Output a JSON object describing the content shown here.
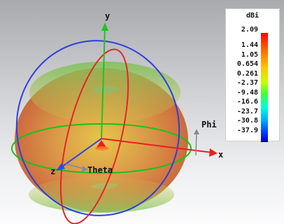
{
  "chart_data": {
    "type": "3d-radiation-pattern",
    "axes": {
      "x": "x",
      "y": "y",
      "z": "z",
      "phi": "Phi",
      "theta": "Theta"
    },
    "colorbar": {
      "unit": "dBi",
      "ticks": [
        "2.09",
        "1.44",
        "1.05",
        "0.654",
        "0.261",
        "-2.37",
        "-9.48",
        "-16.6",
        "-23.7",
        "-30.8",
        "-37.9"
      ],
      "max": 2.09,
      "min": -37.9
    }
  },
  "colors": {
    "x_axis": "#e52020",
    "y_axis": "#22c322",
    "z_axis": "#2a4be0",
    "theta_axis": "#7a8cad",
    "phi_axis": "#8a8a8a"
  }
}
